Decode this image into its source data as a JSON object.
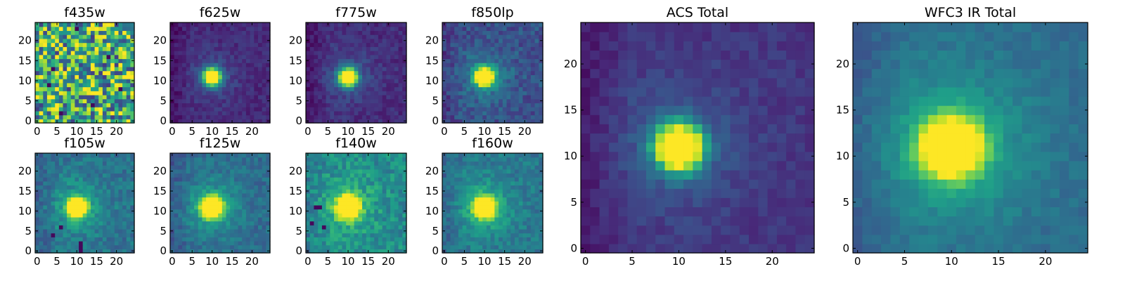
{
  "chart_data": [
    {
      "type": "heatmap",
      "title": "f435w",
      "image_size": 25,
      "pattern": "noise",
      "peak_pixel": null,
      "diffuse_level": 0.0,
      "noise_level": 0.45,
      "baseline": 0.62,
      "hole_pixels": [
        [
          10,
          23
        ],
        [
          4,
          13
        ],
        [
          3,
          9
        ],
        [
          21,
          8
        ],
        [
          6,
          2
        ],
        [
          14,
          4
        ],
        [
          18,
          16
        ]
      ],
      "x_ticks": [
        "0",
        "5",
        "10",
        "15",
        "20"
      ],
      "y_ticks": [
        "0",
        "5",
        "10",
        "15",
        "20"
      ],
      "xlim": [
        0,
        25
      ],
      "ylim": [
        0,
        25
      ],
      "colormap": "viridis"
    },
    {
      "type": "heatmap",
      "title": "f625w",
      "image_size": 25,
      "pattern": "source",
      "peak_pixel": [
        10,
        11
      ],
      "sigma": 1.5,
      "diffuse_level": 0.12,
      "noise_level": 0.12,
      "baseline": 0.12,
      "hole_pixels": [],
      "x_ticks": [
        "0",
        "5",
        "10",
        "15",
        "20"
      ],
      "y_ticks": [
        "0",
        "5",
        "10",
        "15",
        "20"
      ],
      "xlim": [
        0,
        25
      ],
      "ylim": [
        0,
        25
      ],
      "colormap": "viridis"
    },
    {
      "type": "heatmap",
      "title": "f775w",
      "image_size": 25,
      "pattern": "source",
      "peak_pixel": [
        10,
        11
      ],
      "sigma": 1.5,
      "diffuse_level": 0.14,
      "noise_level": 0.13,
      "baseline": 0.13,
      "hole_pixels": [],
      "x_ticks": [
        "0",
        "5",
        "10",
        "15",
        "20"
      ],
      "y_ticks": [
        "0",
        "5",
        "10",
        "15",
        "20"
      ],
      "xlim": [
        0,
        25
      ],
      "ylim": [
        0,
        25
      ],
      "colormap": "viridis"
    },
    {
      "type": "heatmap",
      "title": "f850lp",
      "image_size": 25,
      "pattern": "source",
      "peak_pixel": [
        10,
        11
      ],
      "sigma": 1.5,
      "diffuse_level": 0.2,
      "noise_level": 0.2,
      "baseline": 0.25,
      "hole_pixels": [],
      "x_ticks": [
        "0",
        "5",
        "10",
        "15",
        "20"
      ],
      "y_ticks": [
        "0",
        "5",
        "10",
        "15",
        "20"
      ],
      "xlim": [
        0,
        25
      ],
      "ylim": [
        0,
        25
      ],
      "colormap": "viridis"
    },
    {
      "type": "heatmap",
      "title": "f105w",
      "image_size": 25,
      "pattern": "source",
      "peak_pixel": [
        10,
        11
      ],
      "sigma": 1.6,
      "diffuse_level": 0.2,
      "noise_level": 0.2,
      "baseline": 0.38,
      "hole_pixels": [
        [
          11,
          2
        ],
        [
          11,
          1
        ],
        [
          11,
          0
        ],
        [
          6,
          6
        ],
        [
          4,
          4
        ]
      ],
      "x_ticks": [
        "0",
        "5",
        "10",
        "15",
        "20"
      ],
      "y_ticks": [
        "0",
        "5",
        "10",
        "15",
        "20"
      ],
      "xlim": [
        0,
        25
      ],
      "ylim": [
        0,
        25
      ],
      "colormap": "viridis"
    },
    {
      "type": "heatmap",
      "title": "f125w",
      "image_size": 25,
      "pattern": "source",
      "peak_pixel": [
        10,
        11
      ],
      "sigma": 1.7,
      "diffuse_level": 0.22,
      "noise_level": 0.17,
      "baseline": 0.35,
      "hole_pixels": [],
      "x_ticks": [
        "0",
        "5",
        "10",
        "15",
        "20"
      ],
      "y_ticks": [
        "0",
        "5",
        "10",
        "15",
        "20"
      ],
      "xlim": [
        0,
        25
      ],
      "ylim": [
        0,
        25
      ],
      "colormap": "viridis"
    },
    {
      "type": "heatmap",
      "title": "f140w",
      "image_size": 25,
      "pattern": "source",
      "peak_pixel": [
        10,
        11
      ],
      "sigma": 1.7,
      "diffuse_level": 0.2,
      "noise_level": 0.25,
      "baseline": 0.48,
      "hole_pixels": [
        [
          2,
          11
        ],
        [
          3,
          11
        ],
        [
          1,
          7
        ],
        [
          4,
          6
        ]
      ],
      "x_ticks": [
        "0",
        "5",
        "10",
        "15",
        "20"
      ],
      "y_ticks": [
        "0",
        "5",
        "10",
        "15",
        "20"
      ],
      "xlim": [
        0,
        25
      ],
      "ylim": [
        0,
        25
      ],
      "colormap": "viridis"
    },
    {
      "type": "heatmap",
      "title": "f160w",
      "image_size": 25,
      "pattern": "source",
      "peak_pixel": [
        10,
        11
      ],
      "sigma": 1.6,
      "diffuse_level": 0.25,
      "noise_level": 0.18,
      "baseline": 0.4,
      "hole_pixels": [],
      "x_ticks": [
        "0",
        "5",
        "10",
        "15",
        "20"
      ],
      "y_ticks": [
        "0",
        "5",
        "10",
        "15",
        "20"
      ],
      "xlim": [
        0,
        25
      ],
      "ylim": [
        0,
        25
      ],
      "colormap": "viridis"
    },
    {
      "type": "heatmap",
      "title": "ACS Total",
      "image_size": 25,
      "pattern": "source",
      "peak_pixel": [
        10,
        11
      ],
      "sigma": 1.7,
      "diffuse_level": 0.15,
      "noise_level": 0.1,
      "baseline": 0.15,
      "hole_pixels": [],
      "x_ticks": [
        "0",
        "5",
        "10",
        "15",
        "20"
      ],
      "y_ticks": [
        "0",
        "5",
        "10",
        "15",
        "20"
      ],
      "xlim": [
        0,
        25
      ],
      "ylim": [
        0,
        25
      ],
      "colormap": "viridis"
    },
    {
      "type": "heatmap",
      "title": "WFC3 IR Total",
      "image_size": 25,
      "pattern": "source",
      "peak_pixel": [
        10,
        11
      ],
      "sigma": 2.0,
      "diffuse_level": 0.25,
      "noise_level": 0.1,
      "baseline": 0.35,
      "hole_pixels": [],
      "x_ticks": [
        "0",
        "5",
        "10",
        "15",
        "20"
      ],
      "y_ticks": [
        "0",
        "5",
        "10",
        "15",
        "20"
      ],
      "xlim": [
        0,
        25
      ],
      "ylim": [
        0,
        25
      ],
      "colormap": "viridis"
    }
  ]
}
